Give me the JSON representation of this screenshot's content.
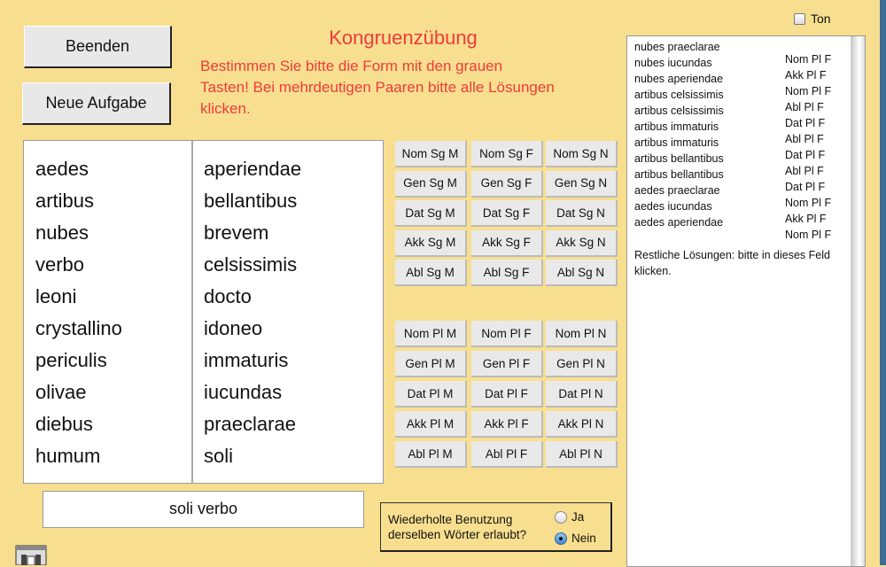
{
  "header": {
    "title": "Kongruenzübung",
    "instructions": "Bestimmen Sie bitte die Form mit den grauen Tasten! Bei mehrdeutigen Paaren bitte alle Lösungen klicken.",
    "quit_label": "Beenden",
    "new_task_label": "Neue Aufgabe",
    "sound_label": "Ton",
    "sound_checked": false
  },
  "nouns": [
    "aedes",
    "artibus",
    "nubes",
    "verbo",
    "leoni",
    "crystallino",
    "periculis",
    "olivae",
    "diebus",
    "humum"
  ],
  "adjectives": [
    "aperiendae",
    "bellantibus",
    "brevem",
    "celsissimis",
    "docto",
    "idoneo",
    "immaturis",
    "iucundas",
    "praeclarae",
    "soli"
  ],
  "singular_buttons": [
    [
      "Nom Sg M",
      "Nom Sg F",
      "Nom Sg N"
    ],
    [
      "Gen Sg M",
      "Gen Sg F",
      "Gen Sg N"
    ],
    [
      "Dat Sg M",
      "Dat Sg F",
      "Dat Sg N"
    ],
    [
      "Akk Sg M",
      "Akk Sg F",
      "Akk Sg N"
    ],
    [
      "Abl Sg M",
      "Abl Sg F",
      "Abl Sg N"
    ]
  ],
  "plural_buttons": [
    [
      "Nom Pl M",
      "Nom Pl F",
      "Nom Pl N"
    ],
    [
      "Gen Pl M",
      "Gen Pl F",
      "Gen Pl N"
    ],
    [
      "Dat Pl M",
      "Dat Pl F",
      "Dat Pl N"
    ],
    [
      "Akk Pl M",
      "Akk Pl F",
      "Akk Pl N"
    ],
    [
      "Abl Pl M",
      "Abl Pl F",
      "Abl Pl N"
    ]
  ],
  "current_pair": "soli verbo",
  "repeat_option": {
    "question": "Wiederholte Benutzung derselben Wörter erlaubt?",
    "yes_label": "Ja",
    "no_label": "Nein",
    "selected": "Nein"
  },
  "solutions": [
    {
      "pair": "nubes praeclarae",
      "form": "Nom Pl F"
    },
    {
      "pair": "nubes iucundas",
      "form": "Akk Pl F"
    },
    {
      "pair": "nubes aperiendae",
      "form": "Nom Pl F"
    },
    {
      "pair": "artibus celsissimis",
      "form": "Abl Pl F"
    },
    {
      "pair": "artibus celsissimis",
      "form": "Dat Pl F"
    },
    {
      "pair": "artibus immaturis",
      "form": "Abl Pl F"
    },
    {
      "pair": "artibus immaturis",
      "form": "Dat Pl F"
    },
    {
      "pair": "artibus bellantibus",
      "form": "Abl Pl F"
    },
    {
      "pair": "artibus bellantibus",
      "form": "Dat Pl F"
    },
    {
      "pair": "aedes praeclarae",
      "form": "Nom Pl F"
    },
    {
      "pair": "aedes iucundas",
      "form": "Akk Pl F"
    },
    {
      "pair": "aedes aperiendae",
      "form": "Nom Pl F"
    }
  ],
  "remaining_hint": "Restliche Lösungen: bitte in dieses Feld klicken.",
  "colors": {
    "background": "#f8df8f",
    "title_red": "#f03a3a",
    "button_gray": "#e9e9e9"
  }
}
